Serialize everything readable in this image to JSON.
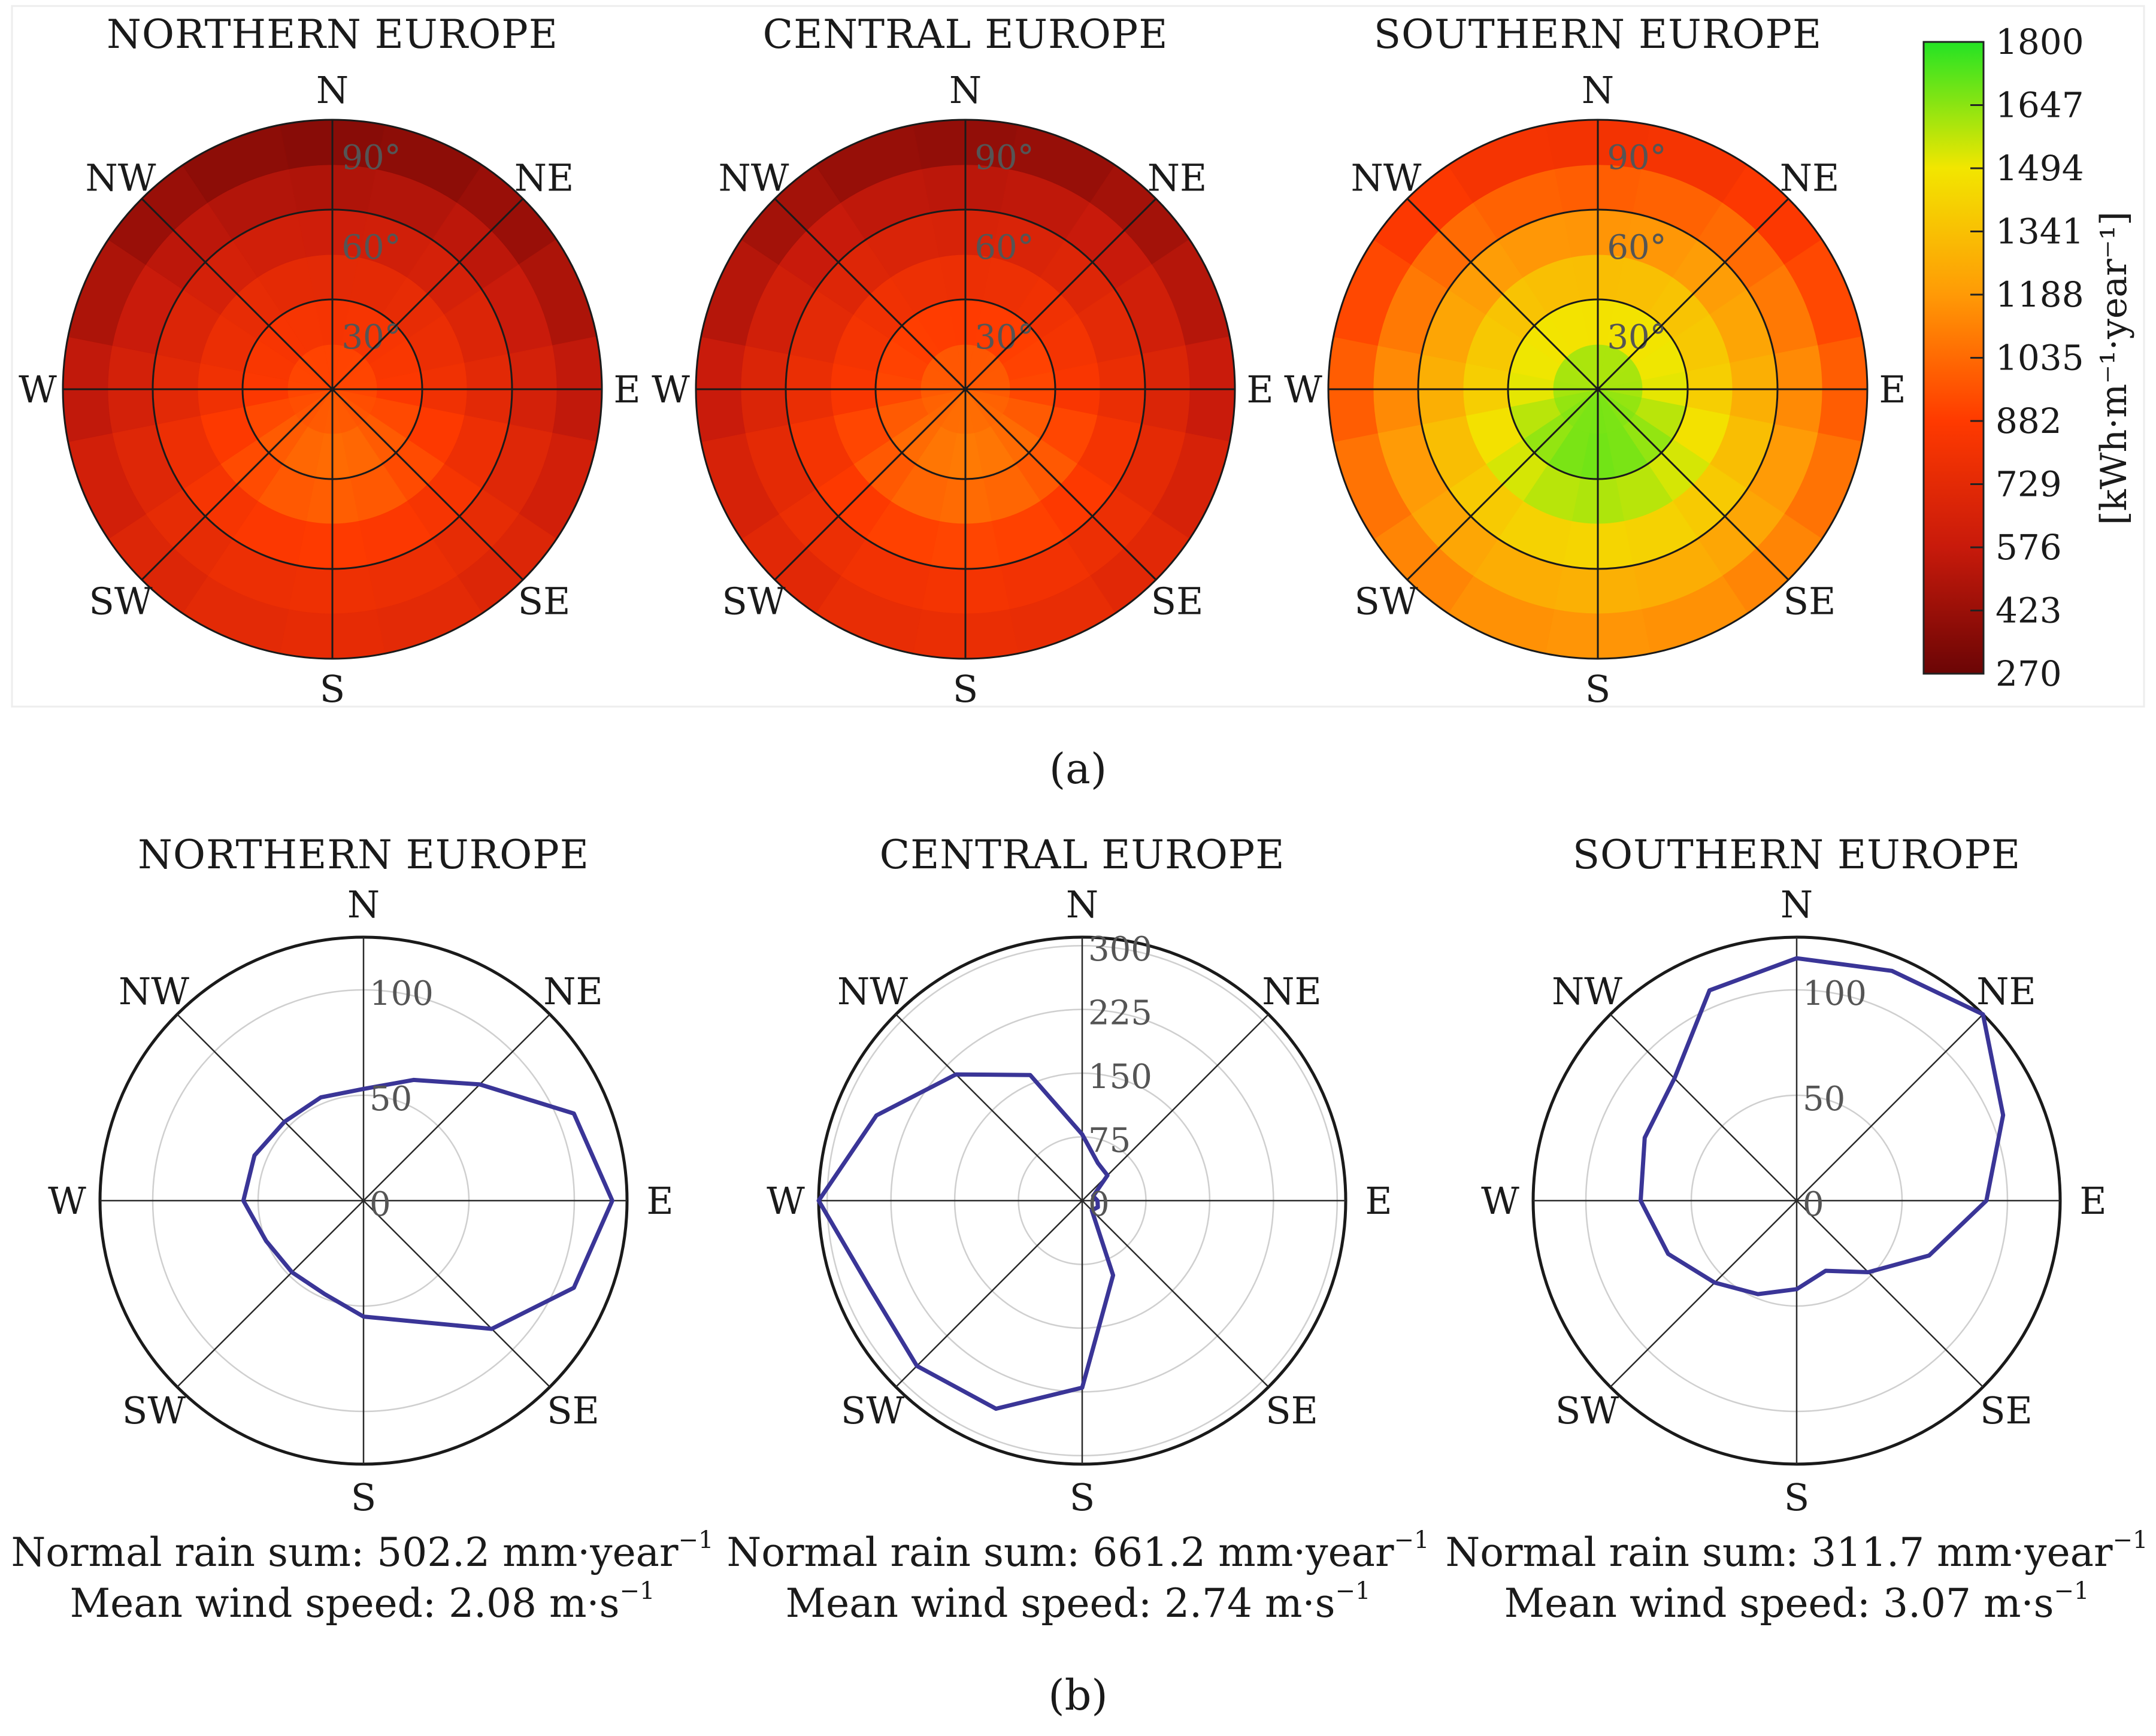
{
  "chart_data": [
    {
      "type": "heatmap",
      "panel": "a",
      "panel_label": "(a)",
      "subject": "Annual irradiation by collector azimuth (direction) and tilt (radius 0–90°)",
      "colorbar": {
        "min": 270,
        "max": 1800,
        "ticks": [
          "1800",
          "1647",
          "1494",
          "1341",
          "1188",
          "1035",
          "882",
          "729",
          "576",
          "423",
          "270"
        ],
        "label": "[kWh·m⁻¹·year⁻¹]",
        "colors": [
          "#6b0505",
          "#c81a0b",
          "#ff3a00",
          "#ff9a06",
          "#f2e600",
          "#24e324"
        ]
      },
      "directions": [
        "N",
        "NE",
        "E",
        "SE",
        "S",
        "SW",
        "W",
        "NW"
      ],
      "ring_ticks": [
        "30°",
        "60°",
        "90°"
      ],
      "ring_tilts": [
        30,
        60,
        90
      ],
      "tilt_steps": [
        7.5,
        22.5,
        37.5,
        52.5,
        67.5,
        82.5
      ],
      "regions": [
        {
          "title": "NORTHERN EUROPE",
          "horizontal": 940,
          "south_gain_30": 160,
          "south_90": 720,
          "north_90": 300
        },
        {
          "title": "CENTRAL EUROPE",
          "horizontal": 1005,
          "south_gain_30": 150,
          "south_90": 740,
          "north_90": 330
        },
        {
          "title": "SOUTHERN EUROPE",
          "horizontal": 1640,
          "south_gain_30": 160,
          "south_90": 1120,
          "north_90": 720
        }
      ]
    },
    {
      "type": "polar-line",
      "panel": "b",
      "panel_label": "(b)",
      "subject": "Directional distribution of driving rain",
      "directions": [
        "N",
        "NE",
        "E",
        "SE",
        "S",
        "SW",
        "W",
        "NW"
      ],
      "angles_deg": [
        0,
        22.5,
        45,
        67.5,
        90,
        112.5,
        135,
        157.5,
        180,
        202.5,
        225,
        247.5,
        270,
        292.5,
        315,
        337.5
      ],
      "series": [
        {
          "title": "NORTHERN EUROPE",
          "rmax": 125,
          "ring_ticks": [
            0,
            50,
            100
          ],
          "values": [
            53,
            62,
            78,
            108,
            118,
            108,
            86,
            62,
            55,
            48,
            48,
            50,
            57,
            56,
            53,
            53
          ],
          "rain_label": "Normal rain sum: 502.2 mm·year",
          "rain_exp": "−1",
          "wind_label": "Mean wind speed: 2.08 m·s",
          "wind_exp": "−1"
        },
        {
          "title": "CENTRAL EUROPE",
          "rmax": 310,
          "ring_ticks": [
            0,
            75,
            150,
            225,
            300
          ],
          "values": [
            78,
            48,
            42,
            14,
            18,
            20,
            16,
            95,
            220,
            265,
            275,
            270,
            310,
            262,
            210,
            160
          ],
          "rain_label": "Normal rain sum: 661.2 mm·year",
          "rain_exp": "−1",
          "wind_label": "Mean wind speed: 2.74 m·s",
          "wind_exp": "−1"
        },
        {
          "title": "SOUTHERN EUROPE",
          "rmax": 125,
          "ring_ticks": [
            0,
            50,
            100
          ],
          "values": [
            115,
            118,
            125,
            106,
            90,
            68,
            48,
            36,
            42,
            48,
            55,
            66,
            74,
            78,
            82,
            108
          ],
          "rain_label": "Normal rain sum: 311.7 mm·year",
          "rain_exp": "−1",
          "wind_label": "Mean wind speed: 3.07 m·s",
          "wind_exp": "−1"
        }
      ]
    }
  ]
}
